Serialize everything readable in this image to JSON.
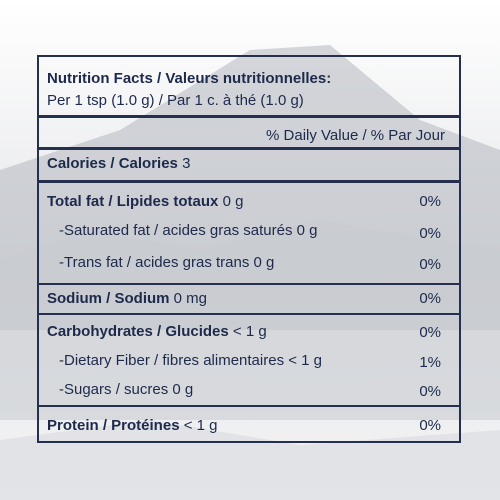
{
  "label": {
    "title": "Nutrition Facts / Valeurs nutritionnelles:",
    "serving": "Per 1 tsp (1.0 g) / Par 1 c. à thé (1.0 g)",
    "daily_value_header": "% Daily Value / % Par Jour",
    "calories": {
      "label": "Calories / Calories",
      "amount": "3"
    },
    "rows": [
      {
        "label": "Total fat / Lipides totaux",
        "amount": "0 g",
        "daily_value": "0%"
      },
      {
        "label": "-Saturated fat / acides gras saturés",
        "amount": "0 g",
        "daily_value": "0%"
      },
      {
        "label": "-Trans fat / acides gras trans",
        "amount": "0 g",
        "daily_value": "0%"
      },
      {
        "label": "Sodium / Sodium",
        "amount": "0 mg",
        "daily_value": "0%"
      },
      {
        "label": "Carbohydrates / Glucides",
        "amount": "< 1 g",
        "daily_value": "0%"
      },
      {
        "label": "-Dietary Fiber / fibres alimentaires",
        "amount": "< 1 g",
        "daily_value": "1%"
      },
      {
        "label": "-Sugars / sucres",
        "amount": "0 g",
        "daily_value": "0%"
      },
      {
        "label": "Protein / Protéines",
        "amount": "< 1 g",
        "daily_value": "0%"
      }
    ]
  }
}
